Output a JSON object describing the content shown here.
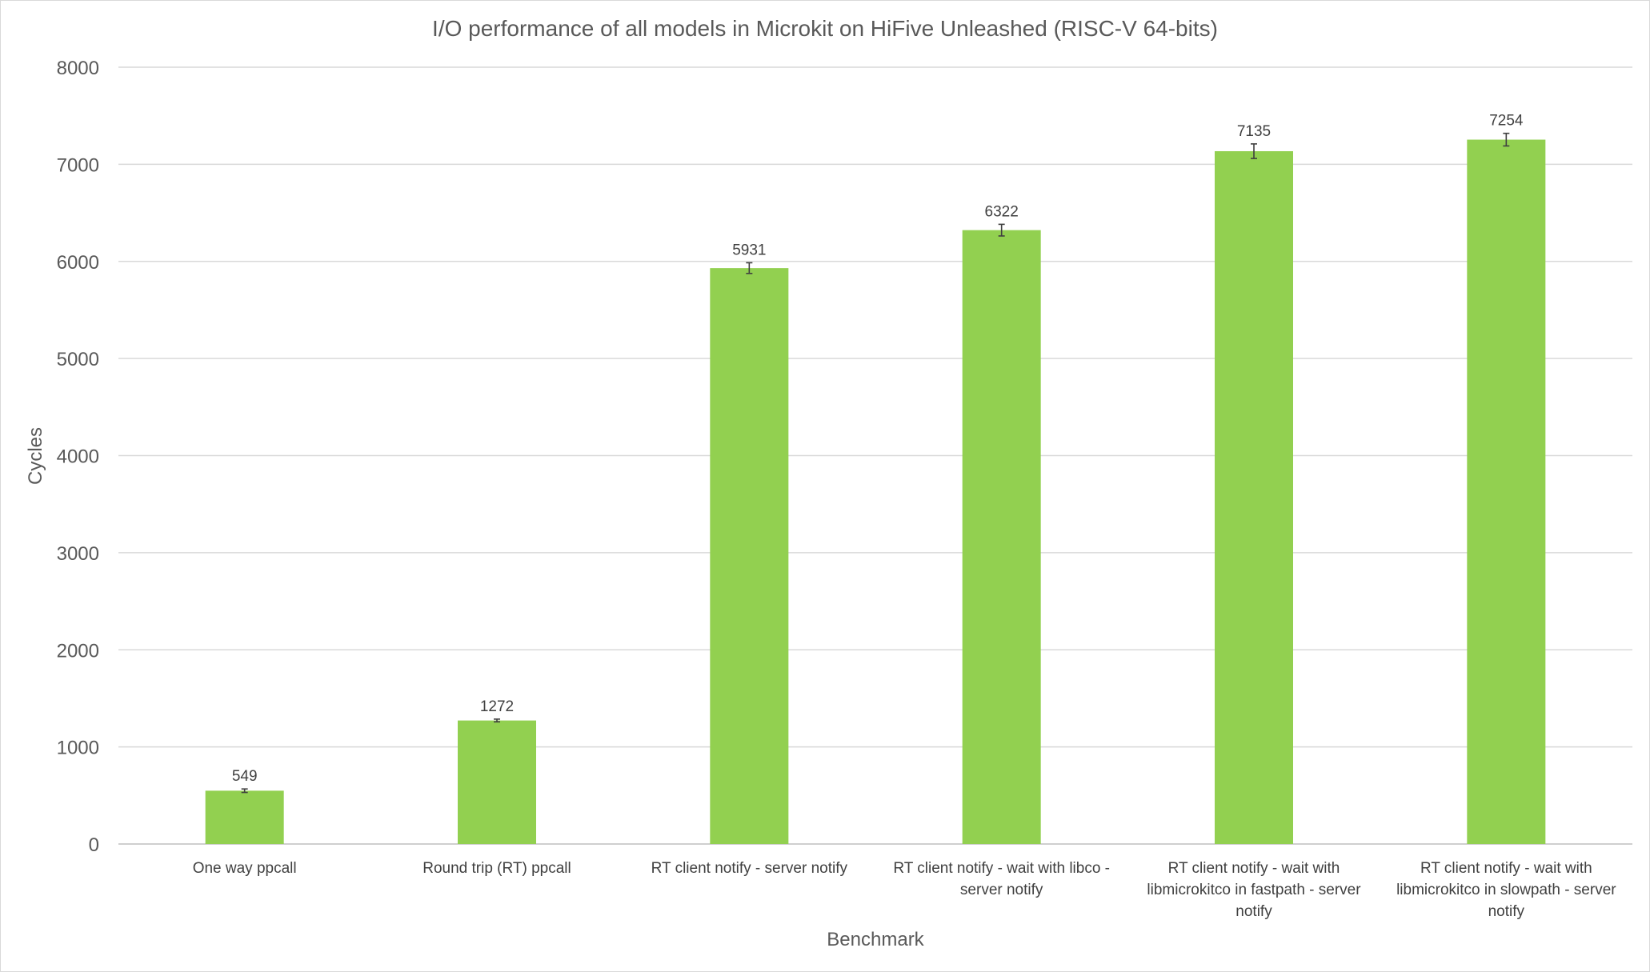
{
  "chart_data": {
    "type": "bar",
    "title": "I/O performance of all models in Microkit on HiFive Unleashed (RISC-V 64-bits)",
    "xlabel": "Benchmark",
    "ylabel": "Cycles",
    "ylim": [
      0,
      8000
    ],
    "yticks": [
      0,
      1000,
      2000,
      3000,
      4000,
      5000,
      6000,
      7000,
      8000
    ],
    "grid": true,
    "legend": "none",
    "categories": [
      [
        "One way ppcall"
      ],
      [
        "Round trip (RT) ppcall"
      ],
      [
        "RT client notify - server notify"
      ],
      [
        "RT client notify - wait with libco -",
        "server notify"
      ],
      [
        "RT client notify - wait with",
        "libmicrokitco in fastpath - server",
        "notify"
      ],
      [
        "RT client notify - wait with",
        "libmicrokitco in slowpath - server",
        "notify"
      ]
    ],
    "values": [
      549,
      1272,
      5931,
      6322,
      7135,
      7254
    ],
    "data_labels": [
      "549",
      "1272",
      "5931",
      "6322",
      "7135",
      "7254"
    ],
    "error": [
      18,
      14,
      55,
      60,
      75,
      65
    ],
    "bar_color": "#92d050"
  }
}
